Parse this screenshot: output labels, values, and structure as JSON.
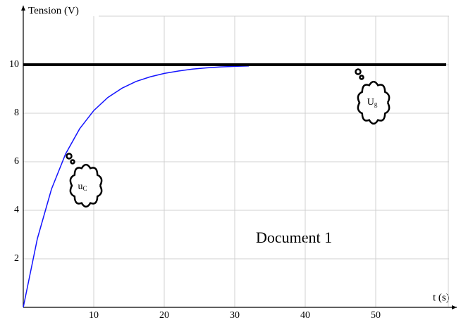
{
  "chart_data": {
    "type": "line",
    "y_label": "Tension (V)",
    "x_label": "t (s)",
    "xlim": [
      0,
      60
    ],
    "ylim": [
      0,
      12
    ],
    "xticks": [
      10,
      20,
      30,
      40,
      50
    ],
    "yticks": [
      2,
      4,
      6,
      8,
      10
    ],
    "grid": true,
    "series": [
      {
        "name": "u",
        "subscript": "C",
        "color": "#1414ff",
        "x": [
          0,
          2,
          4,
          6,
          8,
          10,
          12,
          14,
          16,
          18,
          20,
          22,
          24,
          26,
          28,
          30,
          32
        ],
        "values": [
          0,
          2.83,
          4.87,
          6.32,
          7.36,
          8.11,
          8.65,
          9.03,
          9.31,
          9.5,
          9.64,
          9.74,
          9.82,
          9.87,
          9.91,
          9.93,
          9.95
        ]
      },
      {
        "name": "U",
        "subscript": "g",
        "color": "#000000",
        "x": [
          0,
          60
        ],
        "values": [
          10,
          10
        ]
      }
    ],
    "annotation": "Document 1"
  }
}
